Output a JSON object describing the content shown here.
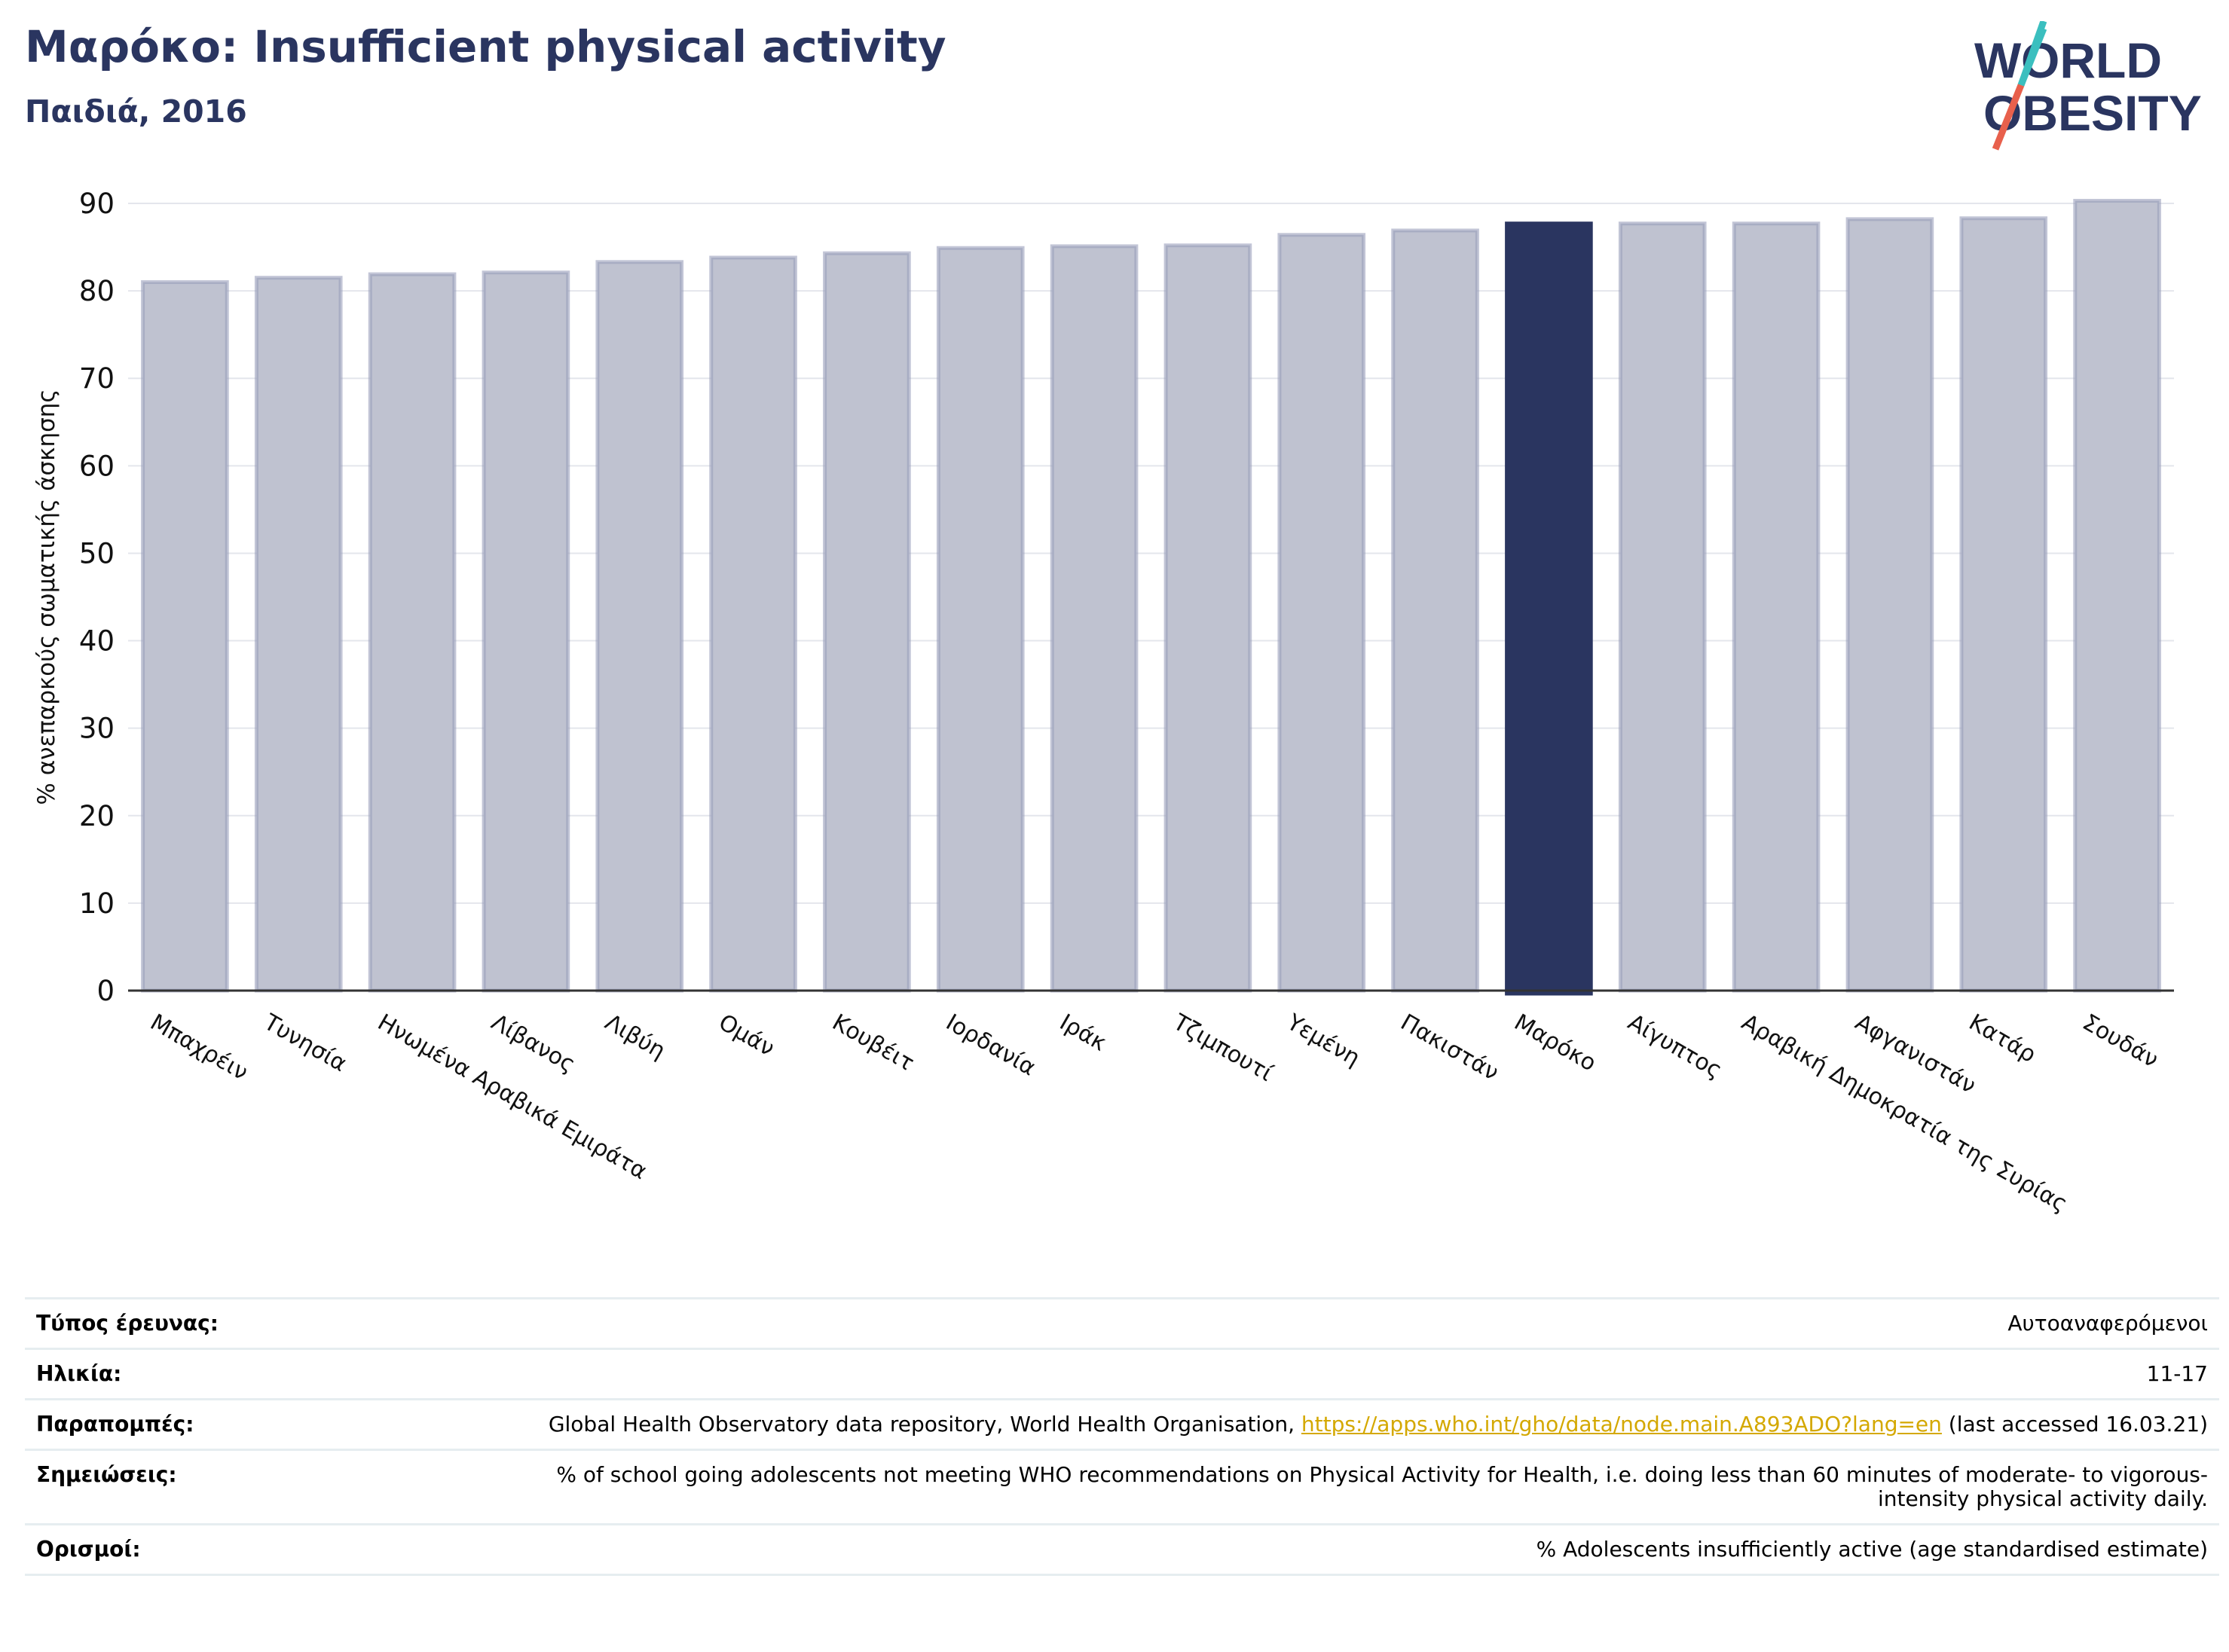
{
  "header": {
    "title": "Μαρόκο: Insufficient physical activity",
    "subtitle": "Παιδιά, 2016"
  },
  "logo": {
    "line1": "WORLD",
    "line2": "OBESITY",
    "colors": {
      "text": "#2a3560",
      "slash_top": "#3bbfbf",
      "slash_bottom": "#e8604c"
    }
  },
  "chart_data": {
    "type": "bar",
    "title": "",
    "ylabel": "% ανεπαρκούς σωματικής άσκησης",
    "xlabel": "",
    "ylim": [
      0,
      90
    ],
    "yticks": [
      0,
      10,
      20,
      30,
      40,
      50,
      60,
      70,
      80,
      90
    ],
    "grid": true,
    "highlight": "Μαρόκο",
    "colors": {
      "bar": "#bfc2d0",
      "bar_edge": "#9a9fba",
      "highlight": "#2a3560"
    },
    "categories": [
      "Μπαχρέιν",
      "Τυνησία",
      "Ηνωμένα Αραβικά Εμιράτα",
      "Λίβανος",
      "Λιβύη",
      "Ομάν",
      "Κουβέιτ",
      "Ιορδανία",
      "Ιράκ",
      "Τζιμπουτί",
      "Υεμένη",
      "Πακιστάν",
      "Μαρόκο",
      "Αίγυπτος",
      "Αραβική Δημοκρατία της Συρίας",
      "Αφγανιστάν",
      "Κατάρ",
      "Σουδάν"
    ],
    "values": [
      81.0,
      81.5,
      81.9,
      82.1,
      83.3,
      83.8,
      84.3,
      84.9,
      85.1,
      85.2,
      86.4,
      86.9,
      87.7,
      87.7,
      87.7,
      88.2,
      88.3,
      90.3
    ]
  },
  "info": {
    "survey_type": {
      "label": "Τύπος έρευνας:",
      "value": "Αυτοαναφερόμενοι"
    },
    "age": {
      "label": "Ηλικία:",
      "value": "11-17"
    },
    "references": {
      "label": "Παραπομπές:",
      "prefix": "Global Health Observatory data repository, World Health Organisation, ",
      "link": "https://apps.who.int/gho/data/node.main.A893ADO?lang=en",
      "suffix": " (last accessed 16.03.21)"
    },
    "notes": {
      "label": "Σημειώσεις:",
      "value": "% of school going adolescents not meeting WHO recommendations on Physical Activity for Health, i.e. doing less than 60 minutes of moderate- to vigorous-intensity physical activity daily."
    },
    "definitions": {
      "label": "Ορισμοί:",
      "value": "% Adolescents insufficiently active (age standardised estimate)"
    }
  }
}
